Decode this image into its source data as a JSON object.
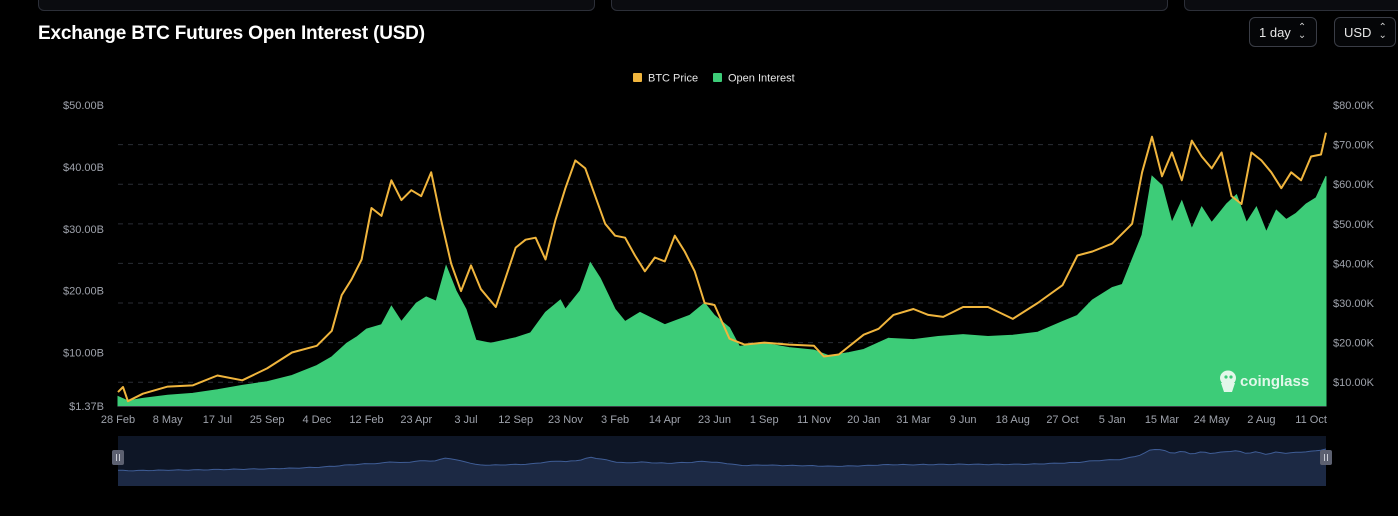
{
  "title": "Exchange BTC Futures Open Interest (USD)",
  "controls": {
    "interval_label": "1 day",
    "currency_label": "USD"
  },
  "watermark": "coinglass",
  "colors": {
    "price": "#f0b53d",
    "oi": "#3dcc78",
    "navigator_fill": "#1c2944",
    "navigator_line": "#3f5d96",
    "grid": "#2a2d35",
    "axis_text": "#9ea2ab"
  },
  "chart_data": {
    "type": "area",
    "legend": [
      {
        "name": "BTC Price",
        "color": "#f0b53d"
      },
      {
        "name": "Open Interest",
        "color": "#3dcc78"
      }
    ],
    "legend_position": "top-center",
    "grid": true,
    "y_left": {
      "ticks": [
        "$1.37B",
        "$10.00B",
        "$20.00B",
        "$30.00B",
        "$40.00B",
        "$50.00B"
      ],
      "tick_values": [
        1.37,
        10,
        20,
        30,
        40,
        50
      ],
      "range": [
        1.37,
        50
      ],
      "unit": "USD billions"
    },
    "y_right": {
      "ticks": [
        "$10.00K",
        "$20.00K",
        "$30.00K",
        "$40.00K",
        "$50.00K",
        "$60.00K",
        "$70.00K",
        "$80.00K"
      ],
      "tick_values": [
        10,
        20,
        30,
        40,
        50,
        60,
        70,
        80
      ],
      "range": [
        4,
        80
      ],
      "unit": "USD thousands"
    },
    "x_ticks": [
      "28 Feb",
      "8 May",
      "17 Jul",
      "25 Sep",
      "4 Dec",
      "12 Feb",
      "23 Apr",
      "3 Jul",
      "12 Sep",
      "23 Nov",
      "3 Feb",
      "14 Apr",
      "23 Jun",
      "1 Sep",
      "11 Nov",
      "20 Jan",
      "31 Mar",
      "9 Jun",
      "18 Aug",
      "27 Oct",
      "5 Jan",
      "15 Mar",
      "24 May",
      "2 Aug",
      "11 Oct"
    ],
    "x_range_index": [
      0,
      24.3
    ],
    "series": [
      {
        "name": "Open Interest",
        "axis": "left",
        "points": [
          [
            0,
            2.9
          ],
          [
            0.2,
            2.2
          ],
          [
            0.5,
            2.6
          ],
          [
            1,
            3.1
          ],
          [
            1.5,
            3.4
          ],
          [
            2,
            4.0
          ],
          [
            2.5,
            4.7
          ],
          [
            3,
            5.3
          ],
          [
            3.5,
            6.3
          ],
          [
            4,
            7.9
          ],
          [
            4.3,
            9.3
          ],
          [
            4.6,
            11.5
          ],
          [
            4.8,
            12.5
          ],
          [
            5,
            13.8
          ],
          [
            5.3,
            14.5
          ],
          [
            5.5,
            17.5
          ],
          [
            5.7,
            15
          ],
          [
            6,
            18
          ],
          [
            6.2,
            19
          ],
          [
            6.4,
            18.3
          ],
          [
            6.6,
            24
          ],
          [
            6.8,
            20
          ],
          [
            7,
            17
          ],
          [
            7.2,
            12
          ],
          [
            7.5,
            11.5
          ],
          [
            8,
            12.4
          ],
          [
            8.3,
            13.2
          ],
          [
            8.6,
            16.5
          ],
          [
            8.9,
            18.5
          ],
          [
            9,
            17
          ],
          [
            9.3,
            20
          ],
          [
            9.5,
            24.5
          ],
          [
            9.7,
            22
          ],
          [
            10,
            17
          ],
          [
            10.2,
            15
          ],
          [
            10.5,
            16.5
          ],
          [
            11,
            14.5
          ],
          [
            11.5,
            16
          ],
          [
            11.8,
            18
          ],
          [
            12,
            16
          ],
          [
            12.3,
            14
          ],
          [
            12.5,
            11
          ],
          [
            13,
            11.5
          ],
          [
            13.5,
            10.8
          ],
          [
            14,
            10.4
          ],
          [
            14.3,
            9.5
          ],
          [
            14.7,
            10
          ],
          [
            15,
            10.5
          ],
          [
            15.5,
            12.3
          ],
          [
            16,
            12.1
          ],
          [
            16.5,
            12.6
          ],
          [
            17,
            12.9
          ],
          [
            17.5,
            12.6
          ],
          [
            18,
            12.8
          ],
          [
            18.5,
            13.3
          ],
          [
            19,
            15
          ],
          [
            19.3,
            16
          ],
          [
            19.6,
            18.5
          ],
          [
            20,
            20.5
          ],
          [
            20.2,
            21
          ],
          [
            20.4,
            25
          ],
          [
            20.6,
            29
          ],
          [
            20.8,
            38.5
          ],
          [
            21,
            37
          ],
          [
            21.2,
            31
          ],
          [
            21.4,
            34.5
          ],
          [
            21.6,
            30
          ],
          [
            21.8,
            33.5
          ],
          [
            22,
            31
          ],
          [
            22.3,
            34
          ],
          [
            22.5,
            35.5
          ],
          [
            22.7,
            31
          ],
          [
            22.9,
            33.5
          ],
          [
            23.1,
            29.5
          ],
          [
            23.3,
            33
          ],
          [
            23.5,
            31.5
          ],
          [
            23.7,
            32.5
          ],
          [
            23.9,
            34
          ],
          [
            24.1,
            35
          ],
          [
            24.3,
            38.5
          ]
        ]
      },
      {
        "name": "BTC Price",
        "axis": "right",
        "points": [
          [
            0,
            7.5
          ],
          [
            0.1,
            8.8
          ],
          [
            0.2,
            5.2
          ],
          [
            0.5,
            7.1
          ],
          [
            1,
            8.9
          ],
          [
            1.5,
            9.2
          ],
          [
            2,
            11.7
          ],
          [
            2.5,
            10.5
          ],
          [
            3,
            13.5
          ],
          [
            3.5,
            17.5
          ],
          [
            4,
            19.2
          ],
          [
            4.3,
            23
          ],
          [
            4.5,
            32
          ],
          [
            4.7,
            36
          ],
          [
            4.9,
            41
          ],
          [
            5.1,
            54
          ],
          [
            5.3,
            52
          ],
          [
            5.5,
            61
          ],
          [
            5.7,
            56
          ],
          [
            5.9,
            58.5
          ],
          [
            6.1,
            57
          ],
          [
            6.3,
            63
          ],
          [
            6.5,
            51
          ],
          [
            6.7,
            40
          ],
          [
            6.9,
            33
          ],
          [
            7.1,
            39.5
          ],
          [
            7.3,
            33.5
          ],
          [
            7.6,
            29
          ],
          [
            8,
            44
          ],
          [
            8.2,
            46
          ],
          [
            8.4,
            46.5
          ],
          [
            8.6,
            41
          ],
          [
            8.8,
            51
          ],
          [
            9,
            59
          ],
          [
            9.2,
            66
          ],
          [
            9.4,
            64
          ],
          [
            9.6,
            57
          ],
          [
            9.8,
            50
          ],
          [
            10,
            47
          ],
          [
            10.2,
            46.5
          ],
          [
            10.4,
            42
          ],
          [
            10.6,
            38
          ],
          [
            10.8,
            41.5
          ],
          [
            11,
            40.5
          ],
          [
            11.2,
            47
          ],
          [
            11.4,
            43
          ],
          [
            11.6,
            38
          ],
          [
            11.8,
            30
          ],
          [
            12,
            29.5
          ],
          [
            12.3,
            21
          ],
          [
            12.6,
            19.5
          ],
          [
            13,
            20
          ],
          [
            13.5,
            19.5
          ],
          [
            14,
            19.2
          ],
          [
            14.2,
            16.5
          ],
          [
            14.5,
            17
          ],
          [
            15,
            22
          ],
          [
            15.3,
            23.5
          ],
          [
            15.6,
            27
          ],
          [
            16,
            28.5
          ],
          [
            16.3,
            27
          ],
          [
            16.6,
            26.5
          ],
          [
            17,
            29
          ],
          [
            17.5,
            29
          ],
          [
            18,
            26
          ],
          [
            18.5,
            30
          ],
          [
            19,
            34.5
          ],
          [
            19.3,
            42
          ],
          [
            19.6,
            43
          ],
          [
            20,
            45
          ],
          [
            20.2,
            47.5
          ],
          [
            20.4,
            50
          ],
          [
            20.6,
            63
          ],
          [
            20.8,
            72
          ],
          [
            21,
            62
          ],
          [
            21.2,
            68
          ],
          [
            21.4,
            61
          ],
          [
            21.6,
            71
          ],
          [
            21.8,
            67
          ],
          [
            22,
            64
          ],
          [
            22.2,
            68
          ],
          [
            22.4,
            57
          ],
          [
            22.6,
            55
          ],
          [
            22.8,
            68
          ],
          [
            23,
            66
          ],
          [
            23.2,
            63
          ],
          [
            23.4,
            59
          ],
          [
            23.6,
            63
          ],
          [
            23.8,
            61
          ],
          [
            24,
            67
          ],
          [
            24.2,
            67.5
          ],
          [
            24.3,
            73
          ]
        ]
      }
    ]
  }
}
